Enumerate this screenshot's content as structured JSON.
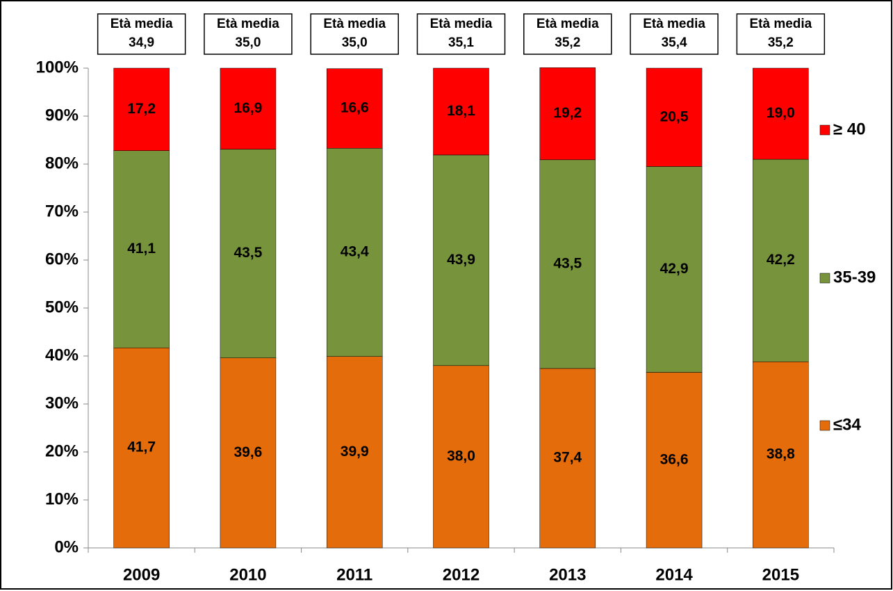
{
  "chart_data": {
    "type": "stacked_bar",
    "categories": [
      "2009",
      "2010",
      "2011",
      "2012",
      "2013",
      "2014",
      "2015"
    ],
    "series": [
      {
        "name": "≤34",
        "color": "#e46c0a",
        "values": [
          41.7,
          39.6,
          39.9,
          38.0,
          37.4,
          36.6,
          38.8
        ],
        "value_labels": [
          "41,7",
          "39,6",
          "39,9",
          "38,0",
          "37,4",
          "36,6",
          "38,8"
        ]
      },
      {
        "name": "35-39",
        "color": "#77933c",
        "values": [
          41.1,
          43.5,
          43.4,
          43.9,
          43.5,
          42.9,
          42.2
        ],
        "value_labels": [
          "41,1",
          "43,5",
          "43,4",
          "43,9",
          "43,5",
          "42,9",
          "42,2"
        ]
      },
      {
        "name": "≥ 40",
        "color": "#ff0000",
        "values": [
          17.2,
          16.9,
          16.6,
          18.1,
          19.2,
          20.5,
          19.0
        ],
        "value_labels": [
          "17,2",
          "16,9",
          "16,6",
          "18,1",
          "19,2",
          "20,5",
          "19,0"
        ]
      }
    ],
    "ylim": [
      0,
      100
    ],
    "yticks": [
      {
        "value": 0,
        "label": "0%"
      },
      {
        "value": 10,
        "label": "10%"
      },
      {
        "value": 20,
        "label": "20%"
      },
      {
        "value": 30,
        "label": "30%"
      },
      {
        "value": 40,
        "label": "40%"
      },
      {
        "value": 50,
        "label": "50%"
      },
      {
        "value": 60,
        "label": "60%"
      },
      {
        "value": 70,
        "label": "70%"
      },
      {
        "value": 80,
        "label": "80%"
      },
      {
        "value": 90,
        "label": "90%"
      },
      {
        "value": 100,
        "label": "100%"
      }
    ],
    "annotation_title": "Età media",
    "annotation_values": [
      "34,9",
      "35,0",
      "35,0",
      "35,1",
      "35,2",
      "35,4",
      "35,2"
    ],
    "legend": "right"
  }
}
